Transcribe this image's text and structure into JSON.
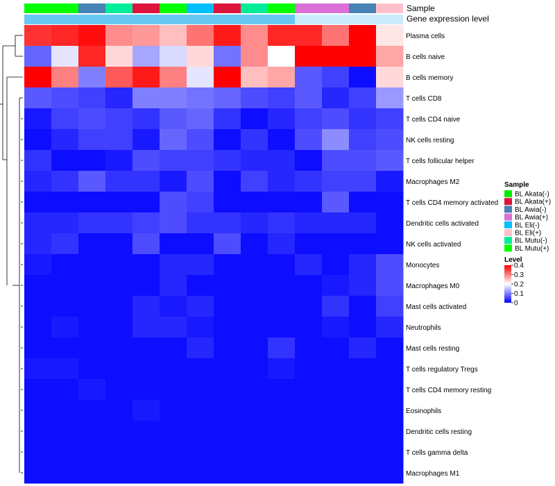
{
  "chart_data": {
    "type": "heatmap",
    "annotation_tracks": [
      "Sample",
      "Gene expression level"
    ],
    "rows": [
      "Plasma cells",
      "B cells naive",
      "B cells memory",
      "T cells CD8",
      "T cells CD4 naive",
      "NK cells resting",
      "T cells follicular helper",
      "Macrophages M2",
      "T cells CD4 memory activated",
      "Dendritic cells activated",
      "NK cells activated",
      "Monocytes",
      "Macrophages M0",
      "Mast cells activated",
      "Neutrophils",
      "Mast cells resting",
      "T cells regulatory  Tregs",
      "T cells CD4 memory resting",
      "Eosinophils",
      "Dendritic cells resting",
      "T cells gamma delta",
      "Macrophages M1"
    ],
    "column_samples": [
      "BL Mutu(+)",
      "BL Mutu(+)",
      "BL Awia(-)",
      "BL Mutu(-)",
      "BL Akata(+)",
      "BL Mutu(+)",
      "BL Eli(-)",
      "BL Akata(+)",
      "BL Mutu(-)",
      "BL Mutu(+)",
      "BL Awia(+)",
      "BL Awia(+)",
      "BL Awia(-)",
      "BL Eli(+)"
    ],
    "column_expression": [
      0.85,
      0.85,
      0.85,
      0.85,
      0.85,
      0.85,
      0.85,
      0.85,
      0.85,
      0.85,
      0.3,
      0.3,
      0.3,
      0.3
    ],
    "values": [
      [
        0.36,
        0.37,
        0.39,
        0.29,
        0.28,
        0.25,
        0.31,
        0.38,
        0.29,
        0.37,
        0.37,
        0.31,
        0.4,
        0.22
      ],
      [
        0.08,
        0.18,
        0.37,
        0.23,
        0.13,
        0.17,
        0.23,
        0.09,
        0.29,
        0.2,
        0.4,
        0.4,
        0.4,
        0.27
      ],
      [
        0.4,
        0.3,
        0.1,
        0.33,
        0.38,
        0.3,
        0.18,
        0.4,
        0.25,
        0.27,
        0.07,
        0.05,
        0.01,
        0.23
      ],
      [
        0.07,
        0.06,
        0.05,
        0.03,
        0.1,
        0.1,
        0.09,
        0.08,
        0.06,
        0.05,
        0.07,
        0.03,
        0.05,
        0.12
      ],
      [
        0.02,
        0.05,
        0.06,
        0.05,
        0.04,
        0.07,
        0.08,
        0.04,
        0.01,
        0.03,
        0.05,
        0.06,
        0.04,
        0.05
      ],
      [
        0.01,
        0.03,
        0.05,
        0.05,
        0.02,
        0.08,
        0.06,
        0.01,
        0.04,
        0.01,
        0.06,
        0.11,
        0.05,
        0.06
      ],
      [
        0.04,
        0.01,
        0.01,
        0.02,
        0.06,
        0.05,
        0.05,
        0.04,
        0.03,
        0.03,
        0.01,
        0.06,
        0.06,
        0.07
      ],
      [
        0.03,
        0.04,
        0.07,
        0.04,
        0.04,
        0.02,
        0.06,
        0.01,
        0.05,
        0.03,
        0.04,
        0.05,
        0.05,
        0.02
      ],
      [
        0.01,
        0.01,
        0.01,
        0.01,
        0.01,
        0.06,
        0.05,
        0.01,
        0.01,
        0.01,
        0.01,
        0.07,
        0.01,
        0.01
      ],
      [
        0.03,
        0.03,
        0.04,
        0.04,
        0.05,
        0.06,
        0.04,
        0.04,
        0.03,
        0.04,
        0.03,
        0.03,
        0.03,
        0.01
      ],
      [
        0.03,
        0.04,
        0.01,
        0.01,
        0.06,
        0.01,
        0.01,
        0.06,
        0.01,
        0.03,
        0.01,
        0.01,
        0.01,
        0.01
      ],
      [
        0.02,
        0.01,
        0.01,
        0.01,
        0.01,
        0.03,
        0.03,
        0.01,
        0.01,
        0.01,
        0.03,
        0.01,
        0.03,
        0.06
      ],
      [
        0.01,
        0.01,
        0.01,
        0.01,
        0.01,
        0.03,
        0.01,
        0.01,
        0.01,
        0.01,
        0.01,
        0.02,
        0.03,
        0.06
      ],
      [
        0.01,
        0.01,
        0.01,
        0.01,
        0.03,
        0.02,
        0.03,
        0.01,
        0.01,
        0.01,
        0.01,
        0.04,
        0.01,
        0.05
      ],
      [
        0.01,
        0.02,
        0.01,
        0.01,
        0.03,
        0.03,
        0.02,
        0.01,
        0.01,
        0.01,
        0.01,
        0.02,
        0.01,
        0.03
      ],
      [
        0.01,
        0.01,
        0.01,
        0.01,
        0.01,
        0.01,
        0.03,
        0.01,
        0.01,
        0.04,
        0.01,
        0.01,
        0.03,
        0.01
      ],
      [
        0.02,
        0.02,
        0.01,
        0.01,
        0.01,
        0.01,
        0.01,
        0.01,
        0.01,
        0.02,
        0.01,
        0.01,
        0.01,
        0.01
      ],
      [
        0.01,
        0.01,
        0.02,
        0.01,
        0.01,
        0.01,
        0.01,
        0.01,
        0.01,
        0.01,
        0.01,
        0.01,
        0.01,
        0.01
      ],
      [
        0.01,
        0.01,
        0.01,
        0.01,
        0.02,
        0.01,
        0.01,
        0.01,
        0.01,
        0.01,
        0.01,
        0.01,
        0.01,
        0.01
      ],
      [
        0.01,
        0.01,
        0.01,
        0.01,
        0.01,
        0.01,
        0.01,
        0.01,
        0.01,
        0.01,
        0.01,
        0.01,
        0.01,
        0.01
      ],
      [
        0.01,
        0.01,
        0.01,
        0.01,
        0.01,
        0.01,
        0.01,
        0.01,
        0.01,
        0.01,
        0.01,
        0.01,
        0.01,
        0.01
      ],
      [
        0.01,
        0.01,
        0.01,
        0.01,
        0.01,
        0.01,
        0.01,
        0.01,
        0.01,
        0.01,
        0.01,
        0.01,
        0.01,
        0.01
      ]
    ],
    "color_scale": {
      "low": "#0000FF",
      "mid": "#FFFFFF",
      "high": "#FF0000",
      "mid_value": 0.2,
      "range": [
        0,
        0.4
      ]
    },
    "sample_legend": {
      "title": "Sample",
      "entries": [
        {
          "label": "BL Akata(-)",
          "color": "#00EE00"
        },
        {
          "label": "BL Akata(+)",
          "color": "#DC143C"
        },
        {
          "label": "BL Awia(-)",
          "color": "#4682B4"
        },
        {
          "label": "BL Awia(+)",
          "color": "#DA70D6"
        },
        {
          "label": "BL Eli(-)",
          "color": "#00BFFF"
        },
        {
          "label": "BL Eli(+)",
          "color": "#FFC0CB"
        },
        {
          "label": "BL Mutu(-)",
          "color": "#00EE99"
        },
        {
          "label": "BL Mutu(+)",
          "color": "#00FF00"
        }
      ]
    },
    "level_legend": {
      "title": "Level",
      "ticks": [
        {
          "label": "0.4",
          "value": 0.4
        },
        {
          "label": "0.3",
          "value": 0.3
        },
        {
          "label": "0.2",
          "value": 0.2
        },
        {
          "label": "0.1",
          "value": 0.1
        },
        {
          "label": "0",
          "value": 0
        }
      ]
    },
    "dendrogram": true
  }
}
